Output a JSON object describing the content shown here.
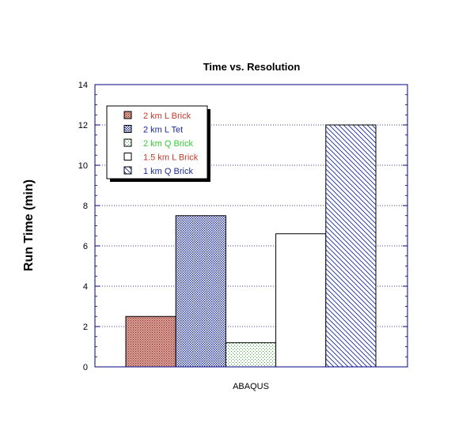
{
  "chart_data": {
    "type": "bar",
    "title": "Time vs. Resolution",
    "ylabel": "Run Time (min)",
    "categories": [
      "ABAQUS"
    ],
    "ylim": [
      0,
      14
    ],
    "yticks": [
      0,
      2,
      4,
      6,
      8,
      10,
      12,
      14
    ],
    "grid": "horizontal-dotted",
    "legend_position": "top-left",
    "series": [
      {
        "name": "2 km L Brick",
        "values": [
          2.5
        ],
        "fill": "#c0504d",
        "pattern": "crosshatch",
        "label_color": "#c0392b"
      },
      {
        "name": "2 km L Tet",
        "values": [
          7.5
        ],
        "fill": "#3344aa",
        "pattern": "fine-dots",
        "label_color": "#1a2a99"
      },
      {
        "name": "2 km Q Brick",
        "values": [
          1.2
        ],
        "fill": "#4caf50",
        "pattern": "sparse-dots",
        "label_color": "#33cc33"
      },
      {
        "name": "1.5 km L Brick",
        "values": [
          6.6
        ],
        "fill": "#ffffff",
        "pattern": "none",
        "label_color": "#c0392b"
      },
      {
        "name": "1 km Q Brick",
        "values": [
          12
        ],
        "fill": "#1a2a99",
        "pattern": "diagonal",
        "label_color": "#1a2a99"
      }
    ],
    "axis_color": "#000080"
  }
}
